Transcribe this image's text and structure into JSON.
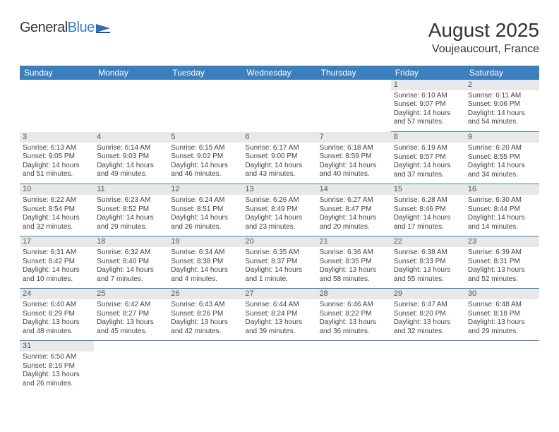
{
  "header": {
    "logo_part1": "General",
    "logo_part2": "Blue",
    "month_title": "August 2025",
    "location": "Voujeaucourt, France"
  },
  "colors": {
    "header_bg": "#3b7fbf",
    "header_text": "#ffffff",
    "daynum_bg": "#e8e8e8",
    "row_border": "#3b7fbf",
    "body_text": "#444444",
    "page_bg": "#ffffff"
  },
  "weekdays": [
    "Sunday",
    "Monday",
    "Tuesday",
    "Wednesday",
    "Thursday",
    "Friday",
    "Saturday"
  ],
  "weeks": [
    [
      null,
      null,
      null,
      null,
      null,
      {
        "n": "1",
        "sr": "Sunrise: 6:10 AM",
        "ss": "Sunset: 9:07 PM",
        "dl": "Daylight: 14 hours and 57 minutes."
      },
      {
        "n": "2",
        "sr": "Sunrise: 6:11 AM",
        "ss": "Sunset: 9:06 PM",
        "dl": "Daylight: 14 hours and 54 minutes."
      }
    ],
    [
      {
        "n": "3",
        "sr": "Sunrise: 6:13 AM",
        "ss": "Sunset: 9:05 PM",
        "dl": "Daylight: 14 hours and 51 minutes."
      },
      {
        "n": "4",
        "sr": "Sunrise: 6:14 AM",
        "ss": "Sunset: 9:03 PM",
        "dl": "Daylight: 14 hours and 49 minutes."
      },
      {
        "n": "5",
        "sr": "Sunrise: 6:15 AM",
        "ss": "Sunset: 9:02 PM",
        "dl": "Daylight: 14 hours and 46 minutes."
      },
      {
        "n": "6",
        "sr": "Sunrise: 6:17 AM",
        "ss": "Sunset: 9:00 PM",
        "dl": "Daylight: 14 hours and 43 minutes."
      },
      {
        "n": "7",
        "sr": "Sunrise: 6:18 AM",
        "ss": "Sunset: 8:59 PM",
        "dl": "Daylight: 14 hours and 40 minutes."
      },
      {
        "n": "8",
        "sr": "Sunrise: 6:19 AM",
        "ss": "Sunset: 8:57 PM",
        "dl": "Daylight: 14 hours and 37 minutes."
      },
      {
        "n": "9",
        "sr": "Sunrise: 6:20 AM",
        "ss": "Sunset: 8:55 PM",
        "dl": "Daylight: 14 hours and 34 minutes."
      }
    ],
    [
      {
        "n": "10",
        "sr": "Sunrise: 6:22 AM",
        "ss": "Sunset: 8:54 PM",
        "dl": "Daylight: 14 hours and 32 minutes."
      },
      {
        "n": "11",
        "sr": "Sunrise: 6:23 AM",
        "ss": "Sunset: 8:52 PM",
        "dl": "Daylight: 14 hours and 29 minutes."
      },
      {
        "n": "12",
        "sr": "Sunrise: 6:24 AM",
        "ss": "Sunset: 8:51 PM",
        "dl": "Daylight: 14 hours and 26 minutes."
      },
      {
        "n": "13",
        "sr": "Sunrise: 6:26 AM",
        "ss": "Sunset: 8:49 PM",
        "dl": "Daylight: 14 hours and 23 minutes."
      },
      {
        "n": "14",
        "sr": "Sunrise: 6:27 AM",
        "ss": "Sunset: 8:47 PM",
        "dl": "Daylight: 14 hours and 20 minutes."
      },
      {
        "n": "15",
        "sr": "Sunrise: 6:28 AM",
        "ss": "Sunset: 8:46 PM",
        "dl": "Daylight: 14 hours and 17 minutes."
      },
      {
        "n": "16",
        "sr": "Sunrise: 6:30 AM",
        "ss": "Sunset: 8:44 PM",
        "dl": "Daylight: 14 hours and 14 minutes."
      }
    ],
    [
      {
        "n": "17",
        "sr": "Sunrise: 6:31 AM",
        "ss": "Sunset: 8:42 PM",
        "dl": "Daylight: 14 hours and 10 minutes."
      },
      {
        "n": "18",
        "sr": "Sunrise: 6:32 AM",
        "ss": "Sunset: 8:40 PM",
        "dl": "Daylight: 14 hours and 7 minutes."
      },
      {
        "n": "19",
        "sr": "Sunrise: 6:34 AM",
        "ss": "Sunset: 8:38 PM",
        "dl": "Daylight: 14 hours and 4 minutes."
      },
      {
        "n": "20",
        "sr": "Sunrise: 6:35 AM",
        "ss": "Sunset: 8:37 PM",
        "dl": "Daylight: 14 hours and 1 minute."
      },
      {
        "n": "21",
        "sr": "Sunrise: 6:36 AM",
        "ss": "Sunset: 8:35 PM",
        "dl": "Daylight: 13 hours and 58 minutes."
      },
      {
        "n": "22",
        "sr": "Sunrise: 6:38 AM",
        "ss": "Sunset: 8:33 PM",
        "dl": "Daylight: 13 hours and 55 minutes."
      },
      {
        "n": "23",
        "sr": "Sunrise: 6:39 AM",
        "ss": "Sunset: 8:31 PM",
        "dl": "Daylight: 13 hours and 52 minutes."
      }
    ],
    [
      {
        "n": "24",
        "sr": "Sunrise: 6:40 AM",
        "ss": "Sunset: 8:29 PM",
        "dl": "Daylight: 13 hours and 48 minutes."
      },
      {
        "n": "25",
        "sr": "Sunrise: 6:42 AM",
        "ss": "Sunset: 8:27 PM",
        "dl": "Daylight: 13 hours and 45 minutes."
      },
      {
        "n": "26",
        "sr": "Sunrise: 6:43 AM",
        "ss": "Sunset: 8:26 PM",
        "dl": "Daylight: 13 hours and 42 minutes."
      },
      {
        "n": "27",
        "sr": "Sunrise: 6:44 AM",
        "ss": "Sunset: 8:24 PM",
        "dl": "Daylight: 13 hours and 39 minutes."
      },
      {
        "n": "28",
        "sr": "Sunrise: 6:46 AM",
        "ss": "Sunset: 8:22 PM",
        "dl": "Daylight: 13 hours and 36 minutes."
      },
      {
        "n": "29",
        "sr": "Sunrise: 6:47 AM",
        "ss": "Sunset: 8:20 PM",
        "dl": "Daylight: 13 hours and 32 minutes."
      },
      {
        "n": "30",
        "sr": "Sunrise: 6:48 AM",
        "ss": "Sunset: 8:18 PM",
        "dl": "Daylight: 13 hours and 29 minutes."
      }
    ],
    [
      {
        "n": "31",
        "sr": "Sunrise: 6:50 AM",
        "ss": "Sunset: 8:16 PM",
        "dl": "Daylight: 13 hours and 26 minutes."
      },
      null,
      null,
      null,
      null,
      null,
      null
    ]
  ]
}
